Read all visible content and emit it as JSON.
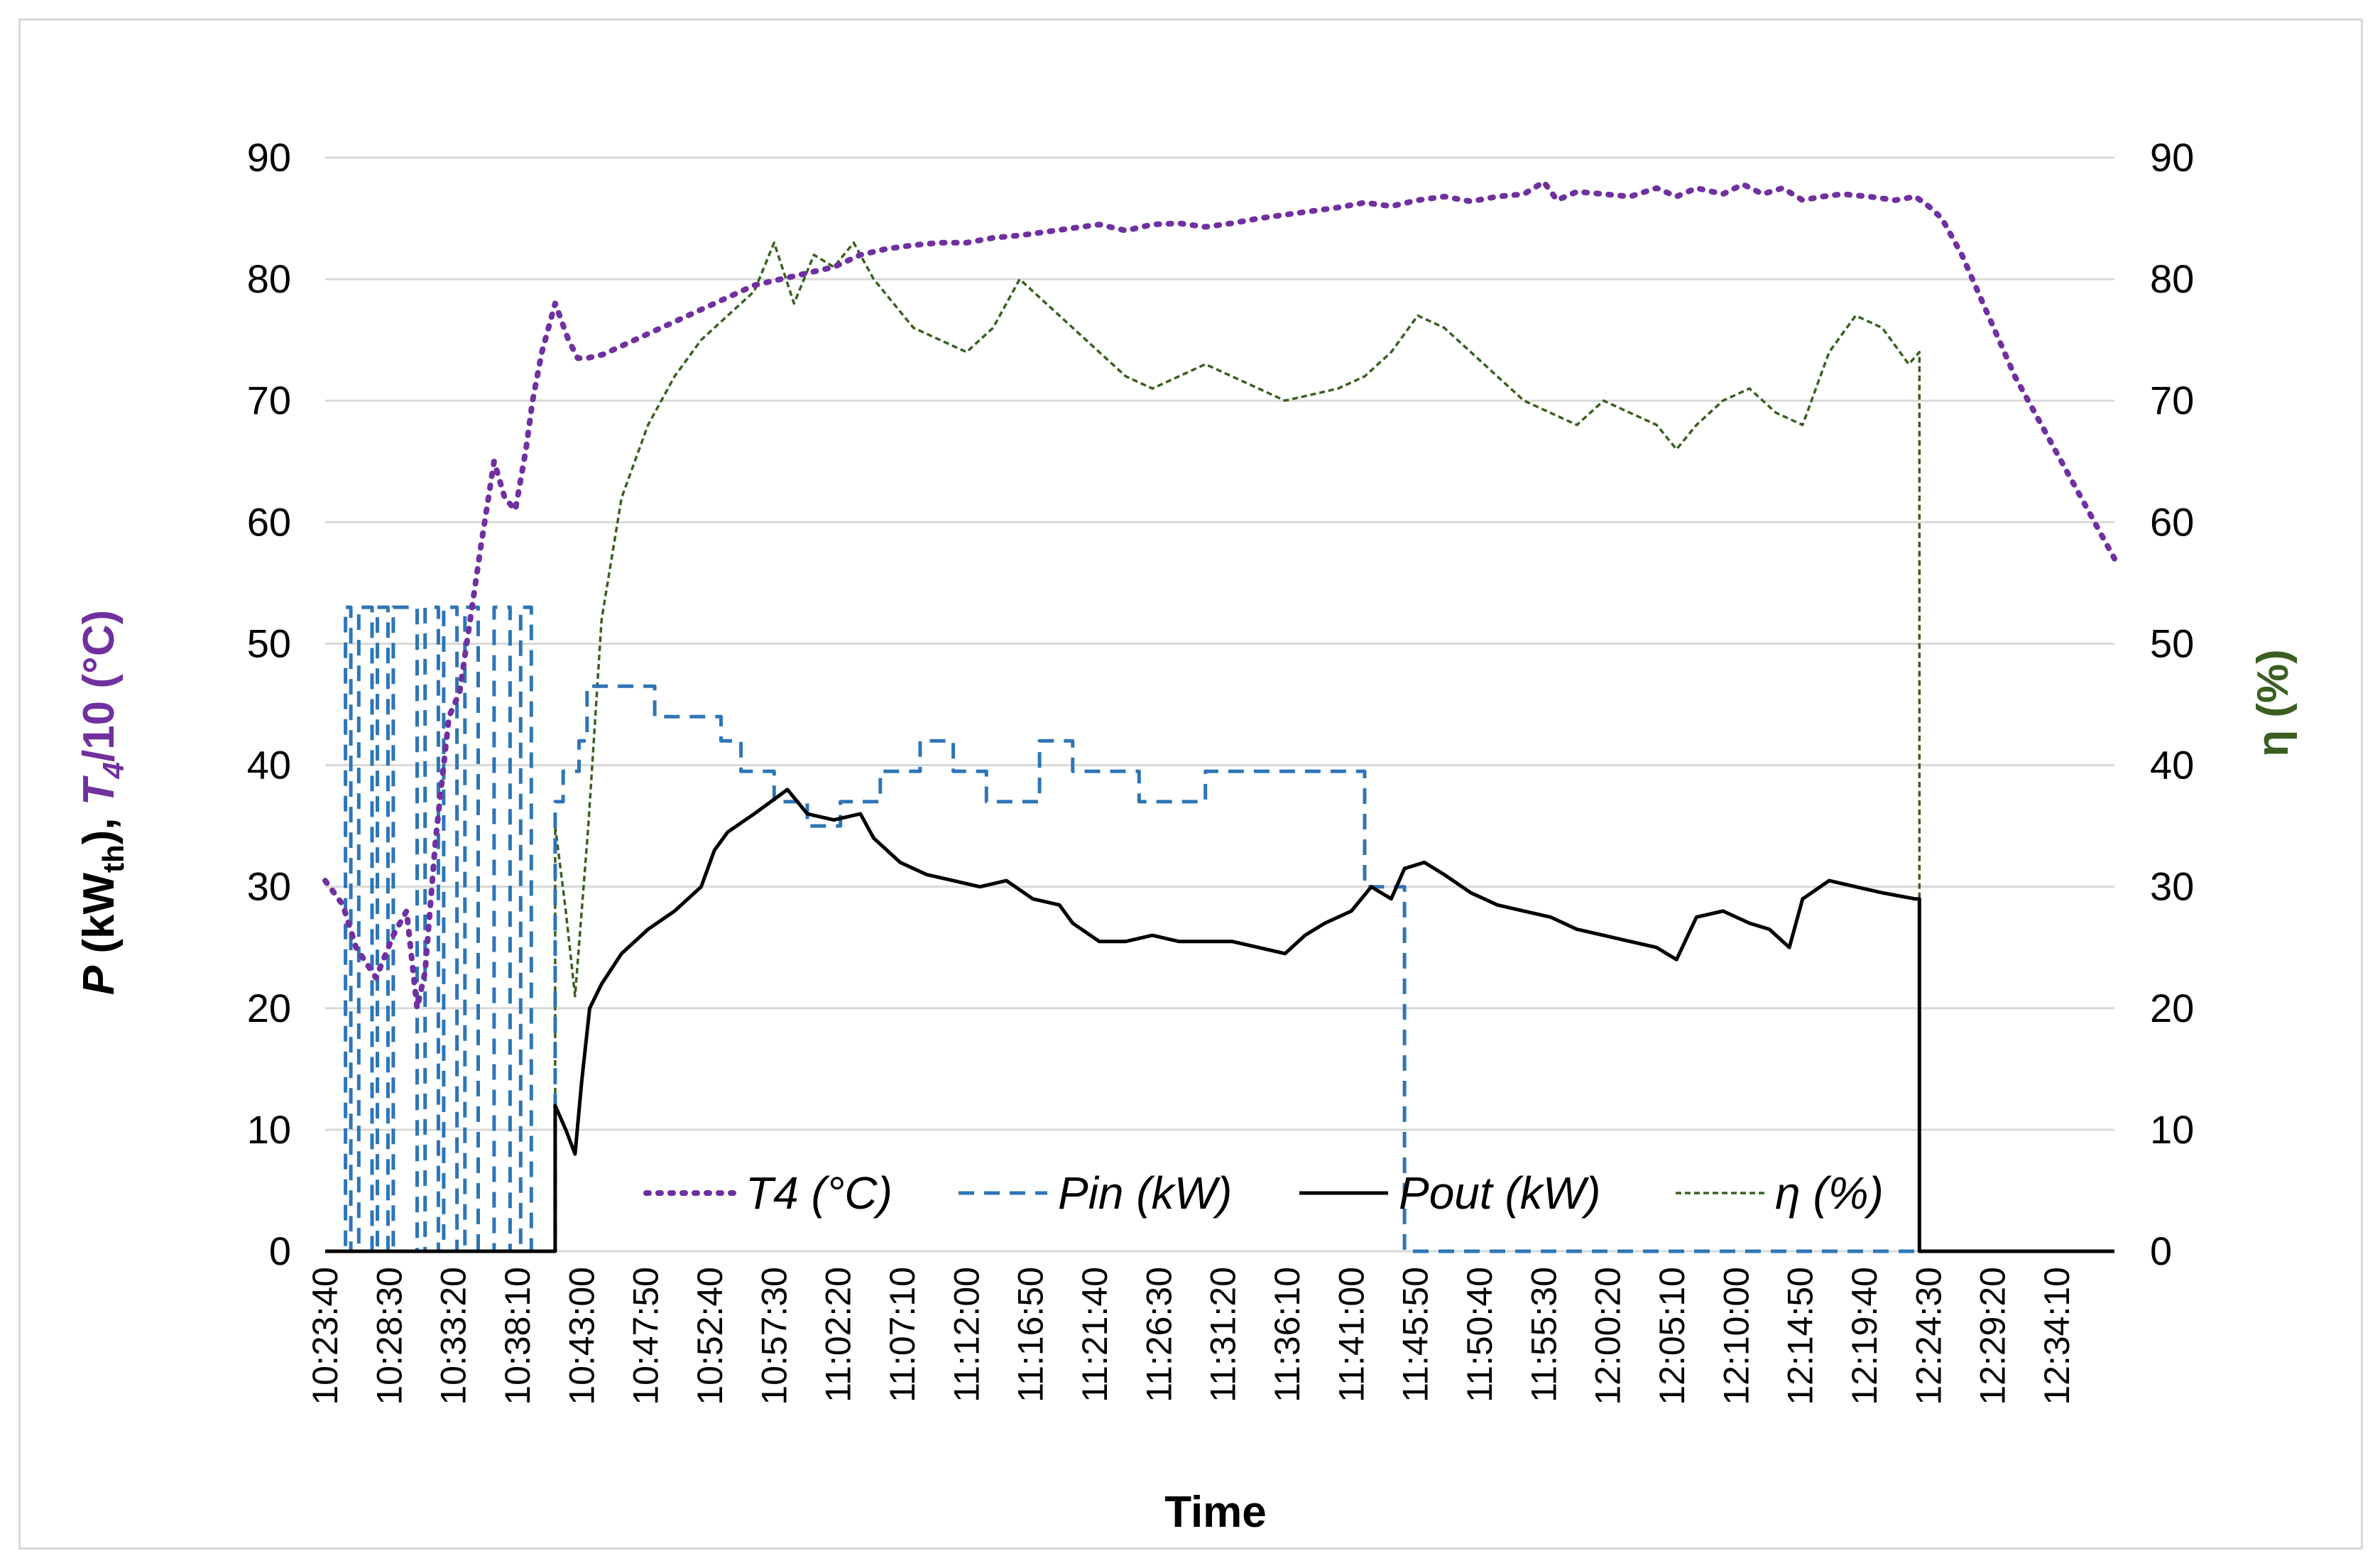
{
  "chart_data": {
    "type": "line",
    "title": "",
    "xlabel": "Time",
    "ylabel_left": "P (kWth), T4/10 (°C)",
    "ylabel_left_parts": {
      "p": "P",
      "open": " (kW",
      "sub": "th",
      "mid": "), ",
      "t": "T",
      "tsub": "4",
      "tail": "/10 (°C)"
    },
    "ylabel_right": "η (%)",
    "ylim": [
      0,
      90
    ],
    "yticks": [
      "0",
      "10",
      "20",
      "30",
      "40",
      "50",
      "60",
      "70",
      "80",
      "90"
    ],
    "xlim_minutes": [
      623.67,
      758.5
    ],
    "xticks": [
      "10:23:40",
      "10:28:30",
      "10:33:20",
      "10:38:10",
      "10:43:00",
      "10:47:50",
      "10:52:40",
      "10:57:30",
      "11:02:20",
      "11:07:10",
      "11:12:00",
      "11:16:50",
      "11:21:40",
      "11:26:30",
      "11:31:20",
      "11:36:10",
      "11:41:00",
      "11:45:50",
      "11:50:40",
      "11:55:30",
      "12:00:20",
      "12:05:10",
      "12:10:00",
      "12:14:50",
      "12:19:40",
      "12:24:30",
      "12:29:20",
      "12:34:10"
    ],
    "xtick_minutes": [
      623.67,
      628.5,
      633.33,
      638.17,
      643.0,
      647.83,
      652.67,
      657.5,
      662.33,
      667.17,
      672.0,
      676.83,
      681.67,
      686.5,
      691.33,
      696.17,
      701.0,
      705.83,
      710.67,
      715.5,
      720.33,
      725.17,
      730.0,
      734.83,
      739.67,
      744.5,
      749.33,
      754.17
    ],
    "legend_position": "bottom-center",
    "series": [
      {
        "name": "T4 (°C)",
        "style": "dotted",
        "color": "#7030a0",
        "x": [
          623.67,
          625.0,
          626.0,
          627.5,
          628.8,
          629.8,
          630.6,
          631.2,
          632.0,
          633.0,
          633.8,
          634.6,
          635.4,
          636.4,
          637.2,
          638.0,
          638.8,
          639.3,
          640.0,
          641.0,
          642.0,
          642.7,
          643.4,
          644.6,
          646.0,
          648.0,
          650.0,
          652.0,
          654.0,
          656.0,
          658.0,
          660.0,
          662.0,
          664.0,
          666.0,
          668.0,
          670.0,
          672.0,
          674.0,
          676.0,
          678.0,
          680.0,
          682.0,
          684.0,
          686.0,
          688.0,
          690.0,
          692.0,
          694.0,
          696.0,
          698.0,
          700.0,
          702.0,
          704.0,
          706.0,
          708.0,
          710.0,
          712.0,
          714.0,
          715.5,
          716.5,
          718.0,
          720.0,
          722.0,
          724.0,
          725.5,
          727.0,
          729.0,
          730.5,
          732.0,
          733.5,
          735.0,
          736.5,
          738.0,
          740.0,
          742.0,
          743.5,
          744.5,
          745.5,
          747.0,
          749.0,
          751.0,
          753.0,
          755.0,
          757.0,
          758.5
        ],
        "values": [
          30.5,
          28.5,
          25.0,
          22.5,
          26.0,
          28.0,
          20.0,
          23.0,
          34.0,
          44.0,
          46.0,
          52.0,
          58.0,
          65.0,
          62.0,
          61.0,
          66.0,
          70.0,
          74.0,
          78.0,
          75.0,
          73.5,
          73.5,
          73.8,
          74.5,
          75.5,
          76.5,
          77.5,
          78.5,
          79.5,
          80.0,
          80.5,
          81.0,
          82.0,
          82.5,
          82.8,
          83.0,
          83.0,
          83.4,
          83.6,
          83.9,
          84.2,
          84.5,
          84.0,
          84.5,
          84.6,
          84.3,
          84.6,
          85.0,
          85.3,
          85.6,
          85.9,
          86.3,
          86.0,
          86.5,
          86.8,
          86.4,
          86.8,
          87.0,
          88.0,
          86.5,
          87.2,
          87.0,
          86.8,
          87.5,
          86.8,
          87.5,
          87.0,
          87.8,
          87.0,
          87.5,
          86.5,
          86.8,
          87.0,
          86.8,
          86.5,
          86.8,
          86.0,
          85.0,
          82.0,
          77.0,
          72.0,
          68.0,
          64.0,
          60.0,
          57.0
        ]
      },
      {
        "name": "Pin (kW)",
        "style": "dashed",
        "color": "#2e75b6",
        "x": [
          623.67,
          625.2,
          625.2,
          625.6,
          625.6,
          626.2,
          626.2,
          627.2,
          627.2,
          627.6,
          627.6,
          628.4,
          628.4,
          628.8,
          628.8,
          630.6,
          630.6,
          631.2,
          631.2,
          632.2,
          632.2,
          632.6,
          632.6,
          633.6,
          633.6,
          634.2,
          634.2,
          635.2,
          635.2,
          636.4,
          636.4,
          637.6,
          637.6,
          638.4,
          638.4,
          639.2,
          639.2,
          641.0,
          641.0,
          641.6,
          641.6,
          642.8,
          642.8,
          643.4,
          643.4,
          648.5,
          648.5,
          653.5,
          653.5,
          655.0,
          655.0,
          657.5,
          657.5,
          660.0,
          660.0,
          662.5,
          662.5,
          665.5,
          665.5,
          668.5,
          668.5,
          671.0,
          671.0,
          673.5,
          673.5,
          677.5,
          677.5,
          680.0,
          680.0,
          685.0,
          685.0,
          690.0,
          690.0,
          698.0,
          698.0,
          702.0,
          702.0,
          705.0,
          705.0,
          708.0,
          708.0,
          712.0,
          712.0,
          718.0,
          718.0,
          724.0,
          724.0,
          726.0,
          726.0,
          730.0,
          730.0,
          733.0,
          733.0,
          736.0,
          736.0,
          742.0,
          742.0,
          743.8,
          743.8,
          758.5
        ],
        "values": [
          0,
          0,
          53,
          53,
          0,
          0,
          53,
          53,
          0,
          0,
          53,
          53,
          0,
          0,
          53,
          53,
          0,
          0,
          53,
          53,
          0,
          0,
          53,
          53,
          0,
          0,
          53,
          53,
          0,
          0,
          53,
          53,
          0,
          0,
          53,
          53,
          0,
          0,
          37,
          37,
          39.5,
          39.5,
          42,
          42,
          46.5,
          46.5,
          44,
          44,
          42,
          42,
          39.5,
          39.5,
          37,
          37,
          35,
          35,
          37,
          37,
          39.5,
          39.5,
          42,
          42,
          39.5,
          39.5,
          37,
          37,
          42,
          42,
          39.5,
          39.5,
          37,
          37,
          39.5,
          39.5,
          39.5,
          39.5,
          30,
          30,
          0,
          0,
          0,
          0,
          0,
          0,
          0,
          0,
          0,
          0,
          0,
          0,
          0,
          0,
          0,
          0,
          0,
          0,
          0,
          0,
          0,
          0
        ]
      },
      {
        "name": "Pout (kW)",
        "style": "solid",
        "color": "#000000",
        "x": [
          623.67,
          641.0,
          641.0,
          641.8,
          642.5,
          643.0,
          643.6,
          644.5,
          646.0,
          648.0,
          650.0,
          652.0,
          653.0,
          654.0,
          656.0,
          658.5,
          660.0,
          662.0,
          664.0,
          665.0,
          667.0,
          669.0,
          671.0,
          673.0,
          675.0,
          677.0,
          679.0,
          680.0,
          682.0,
          684.0,
          686.0,
          688.0,
          690.0,
          692.0,
          694.0,
          696.0,
          697.5,
          699.0,
          701.0,
          702.5,
          704.0,
          705.0,
          706.5,
          708.0,
          710.0,
          712.0,
          714.0,
          716.0,
          718.0,
          720.0,
          722.0,
          724.0,
          725.5,
          727.0,
          729.0,
          731.0,
          732.5,
          734.0,
          735.0,
          737.0,
          739.0,
          741.0,
          743.5,
          743.5,
          743.8,
          743.8,
          758.5
        ],
        "values": [
          0,
          0,
          12,
          10,
          8,
          14,
          20,
          22,
          24.5,
          26.5,
          28,
          30,
          33,
          34.5,
          36,
          38,
          36,
          35.5,
          36,
          34,
          32,
          31,
          30.5,
          30,
          30.5,
          29,
          28.5,
          27,
          25.5,
          25.5,
          26,
          25.5,
          25.5,
          25.5,
          25,
          24.5,
          26,
          27,
          28,
          30,
          29,
          31.5,
          32,
          31,
          29.5,
          28.5,
          28,
          27.5,
          26.5,
          26,
          25.5,
          25,
          24,
          27.5,
          28,
          27,
          26.5,
          25,
          29,
          30.5,
          30,
          29.5,
          29,
          29,
          29,
          0,
          0
        ]
      },
      {
        "name": "η (%)",
        "style": "dashed-fine",
        "color": "#3a5f21",
        "x": [
          623.67,
          641.0,
          641.0,
          641.8,
          642.5,
          643.5,
          644.5,
          646.0,
          648.0,
          650.0,
          652.0,
          654.0,
          656.0,
          657.5,
          659.0,
          660.5,
          662.0,
          663.5,
          665.0,
          666.5,
          668.0,
          670.0,
          672.0,
          674.0,
          676.0,
          678.0,
          680.0,
          682.0,
          684.0,
          686.0,
          688.0,
          690.0,
          692.0,
          694.0,
          696.0,
          698.0,
          700.0,
          702.0,
          704.0,
          706.0,
          708.0,
          710.0,
          712.0,
          714.0,
          716.0,
          718.0,
          720.0,
          722.0,
          724.0,
          725.5,
          727.0,
          729.0,
          731.0,
          733.0,
          735.0,
          737.0,
          739.0,
          741.0,
          743.0,
          743.8,
          743.8,
          758.5
        ],
        "values": [
          0,
          0,
          35,
          28,
          21,
          35,
          52,
          62,
          68,
          72,
          75,
          77,
          79,
          83,
          78,
          82,
          81,
          83,
          80,
          78,
          76,
          75,
          74,
          76,
          80,
          78,
          76,
          74,
          72,
          71,
          72,
          73,
          72,
          71,
          70,
          70.5,
          71,
          72,
          74,
          77,
          76,
          74,
          72,
          70,
          69,
          68,
          70,
          69,
          68,
          66,
          68,
          70,
          71,
          69,
          68,
          74,
          77,
          76,
          73,
          74,
          0,
          0
        ]
      }
    ]
  }
}
